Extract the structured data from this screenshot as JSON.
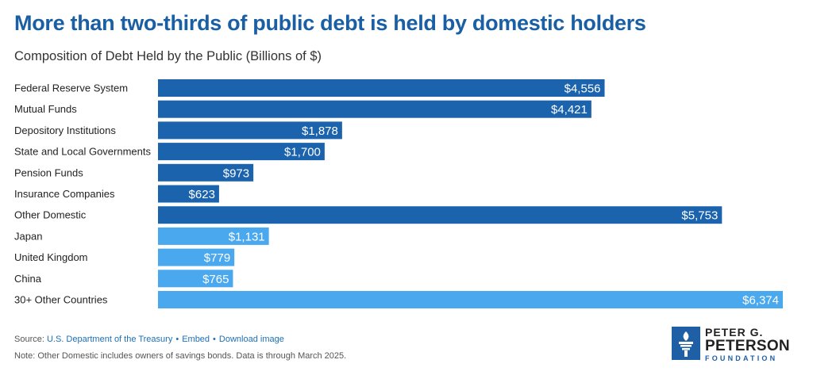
{
  "header": {
    "title": "More than two-thirds of public debt is held by domestic holders",
    "subtitle": "Composition of Debt Held by the Public (Billions of $)"
  },
  "chart_data": {
    "type": "bar",
    "orientation": "horizontal",
    "categories": [
      "Federal Reserve System",
      "Mutual Funds",
      "Depository Institutions",
      "State and Local Governments",
      "Pension Funds",
      "Insurance Companies",
      "Other Domestic",
      "Japan",
      "United Kingdom",
      "China",
      "30+ Other Countries"
    ],
    "values": [
      4556,
      4421,
      1878,
      1700,
      973,
      623,
      5753,
      1131,
      779,
      765,
      6374
    ],
    "value_labels": [
      "$4,556",
      "$4,421",
      "$1,878",
      "$1,700",
      "$973",
      "$623",
      "$5,753",
      "$1,131",
      "$779",
      "$765",
      "$6,374"
    ],
    "groups": [
      "domestic",
      "domestic",
      "domestic",
      "domestic",
      "domestic",
      "domestic",
      "domestic",
      "foreign",
      "foreign",
      "foreign",
      "foreign"
    ],
    "colors": {
      "domestic": "#1c63ad",
      "foreign": "#4aa8ee"
    },
    "title": "More than two-thirds of public debt is held by domestic holders",
    "subtitle": "Composition of Debt Held by the Public (Billions of $)",
    "xlim": [
      0,
      6374
    ],
    "grid": false,
    "legend": "none"
  },
  "footer": {
    "source_prefix": "Source: ",
    "source_link": "U.S. Department of the Treasury",
    "separator": "•",
    "embed": "Embed",
    "download": "Download image",
    "note": "Note: Other Domestic includes owners of savings bonds. Data is through March 2025."
  },
  "logo": {
    "line1": "PETER G.",
    "line2": "PETERSON",
    "line3": "FOUNDATION",
    "icon": "torch-icon",
    "color": "#1f5fa6"
  }
}
